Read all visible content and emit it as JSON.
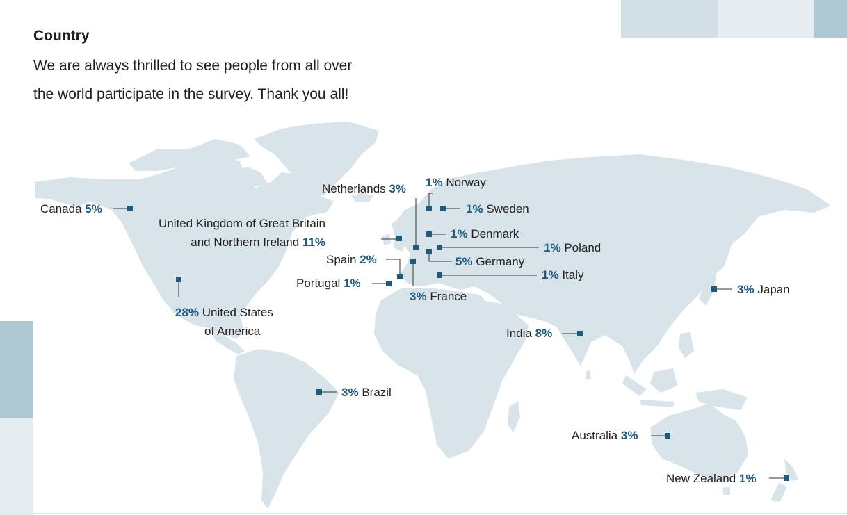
{
  "section": {
    "title": "Country",
    "description_line1": "We are always thrilled to see people from all over",
    "description_line2": "the world participate in the survey. Thank you all!"
  },
  "colors": {
    "land": "#d8e3ea",
    "marker": "#1d5a7c",
    "percent_text": "#1d5a7c",
    "accent_light": "#e6edf1",
    "accent_mid": "#d3dfe6",
    "accent_dark": "#adc8d3"
  },
  "countries": [
    {
      "id": "canada",
      "name": "Canada",
      "percent": "5%"
    },
    {
      "id": "usa",
      "name_line1": "United States",
      "name_line2": "of America",
      "percent": "28%"
    },
    {
      "id": "uk",
      "name_line1": "United Kingdom of Great Britain",
      "name_line2": "and Northern Ireland",
      "percent": "11%"
    },
    {
      "id": "netherlands",
      "name": "Netherlands",
      "percent": "3%"
    },
    {
      "id": "norway",
      "name": "Norway",
      "percent": "1%"
    },
    {
      "id": "sweden",
      "name": "Sweden",
      "percent": "1%"
    },
    {
      "id": "denmark",
      "name": "Denmark",
      "percent": "1%"
    },
    {
      "id": "poland",
      "name": "Poland",
      "percent": "1%"
    },
    {
      "id": "germany",
      "name": "Germany",
      "percent": "5%"
    },
    {
      "id": "spain",
      "name": "Spain",
      "percent": "2%"
    },
    {
      "id": "portugal",
      "name": "Portugal",
      "percent": "1%"
    },
    {
      "id": "france",
      "name": "France",
      "percent": "3%"
    },
    {
      "id": "italy",
      "name": "Italy",
      "percent": "1%"
    },
    {
      "id": "japan",
      "name": "Japan",
      "percent": "3%"
    },
    {
      "id": "india",
      "name": "India",
      "percent": "8%"
    },
    {
      "id": "brazil",
      "name": "Brazil",
      "percent": "3%"
    },
    {
      "id": "australia",
      "name": "Australia",
      "percent": "3%"
    },
    {
      "id": "new_zealand",
      "name": "New Zealand",
      "percent": "1%"
    }
  ]
}
